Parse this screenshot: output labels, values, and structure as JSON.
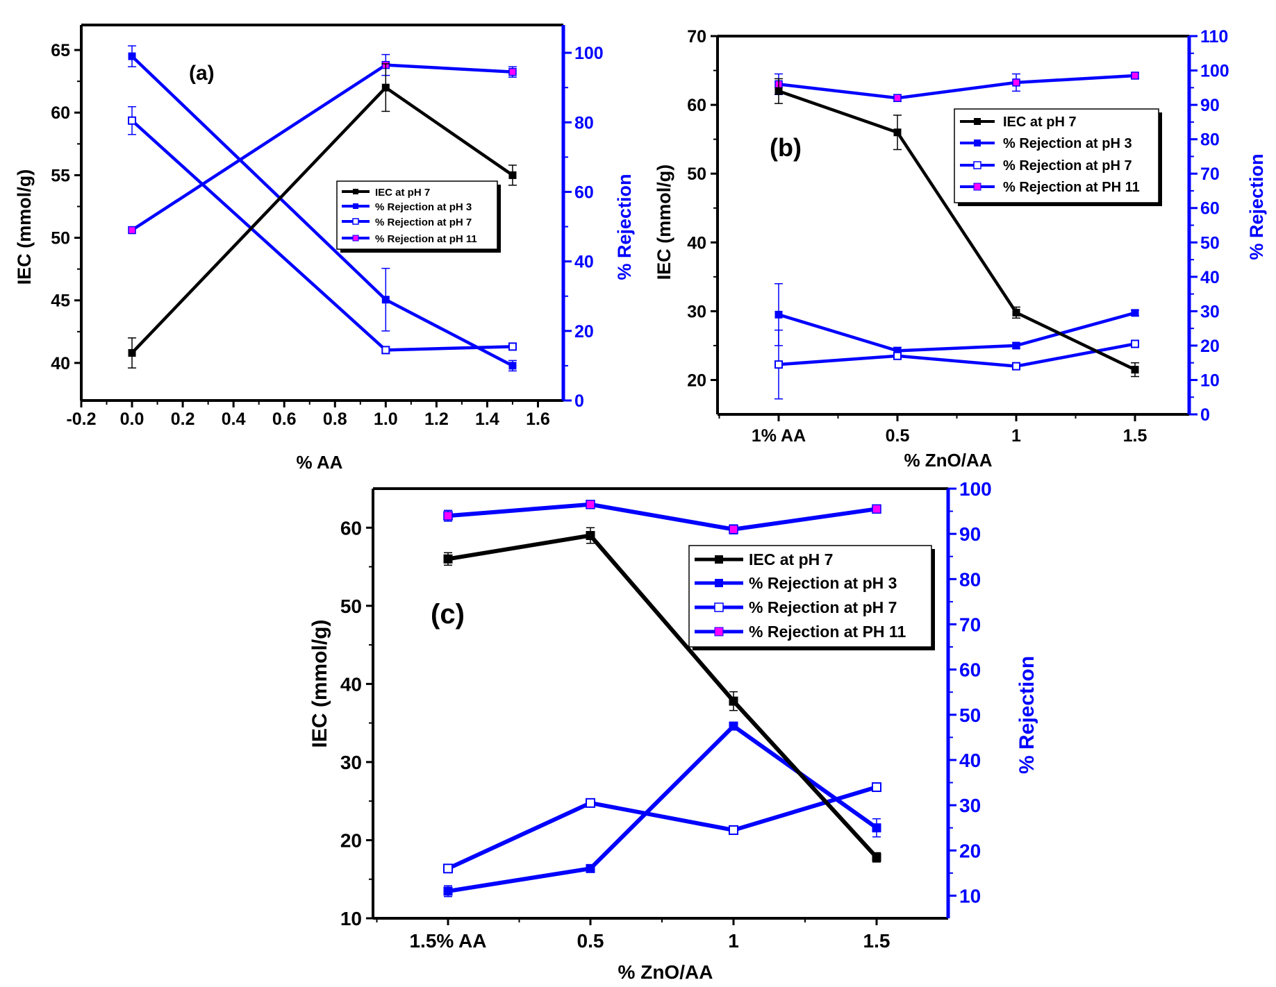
{
  "colors": {
    "ink": "#000000",
    "rejection": "#0000ff",
    "ph11_fill": "#ff00ff",
    "background": "#ffffff"
  },
  "panels": [
    {
      "label": "(a)",
      "xlabel": "% AA",
      "ylabel_left": "IEC (mmol/g)",
      "ylabel_right": "% Rejection",
      "legend": [
        "IEC at pH 7",
        "% Rejection at pH 3",
        "% Rejection at pH 7",
        "% Rejection at pH 11"
      ]
    },
    {
      "label": "(b)",
      "xlabel": "% ZnO/AA",
      "ylabel_left": "IEC (mmol/g)",
      "ylabel_right": "% Rejection",
      "legend": [
        "IEC at pH 7",
        "% Rejection at pH 3",
        "% Rejection at pH 7",
        "% Rejection at PH 11"
      ]
    },
    {
      "label": "(c)",
      "xlabel": "% ZnO/AA",
      "ylabel_left": "IEC (mmol/g)",
      "ylabel_right": "% Rejection",
      "legend": [
        "IEC at pH 7",
        "% Rejection at pH 3",
        "% Rejection at pH 7",
        "% Rejection at PH 11"
      ]
    }
  ],
  "chart_data": [
    {
      "type": "line",
      "panel": "(a)",
      "x": [
        0.0,
        1.0,
        1.5
      ],
      "xlim": [
        -0.2,
        1.7
      ],
      "xticks": [
        "-0.2",
        "0.0",
        "0.2",
        "0.4",
        "0.6",
        "0.8",
        "1.0",
        "1.2",
        "1.4",
        "1.6"
      ],
      "y_left_lim": [
        37,
        67
      ],
      "y_left_ticks": [
        40,
        45,
        50,
        55,
        60,
        65
      ],
      "y_right_lim": [
        0,
        108
      ],
      "y_right_ticks": [
        0,
        20,
        40,
        60,
        80,
        100
      ],
      "series": [
        {
          "name": "IEC at pH 7",
          "axis": "left",
          "marker": "filled-square-black",
          "values": [
            40.8,
            62.0,
            55.0
          ],
          "errors": [
            1.2,
            1.9,
            0.8
          ]
        },
        {
          "name": "% Rejection at pH 3",
          "axis": "right",
          "marker": "filled-square-blue",
          "values": [
            99.0,
            29.0,
            10.0
          ],
          "errors": [
            3.0,
            9.0,
            1.5
          ]
        },
        {
          "name": "% Rejection at pH 7",
          "axis": "right",
          "marker": "open-square",
          "values": [
            80.5,
            14.5,
            15.5
          ],
          "errors": [
            4.0,
            1.0,
            0.8
          ]
        },
        {
          "name": "% Rejection at pH 11",
          "axis": "right",
          "marker": "magenta-square",
          "values": [
            49.0,
            96.5,
            94.5
          ],
          "errors": [
            0.0,
            3.0,
            1.5
          ]
        }
      ]
    },
    {
      "type": "line",
      "panel": "(b)",
      "categories": [
        "1% AA",
        "0.5",
        "1",
        "1.5"
      ],
      "y_left_lim": [
        15,
        70
      ],
      "y_left_ticks": [
        20,
        30,
        40,
        50,
        60,
        70
      ],
      "y_right_lim": [
        0,
        110
      ],
      "y_right_ticks": [
        0,
        10,
        20,
        30,
        40,
        50,
        60,
        70,
        80,
        90,
        100,
        110
      ],
      "series": [
        {
          "name": "IEC at pH 7",
          "axis": "left",
          "marker": "filled-square-black",
          "values": [
            62.0,
            56.0,
            29.8,
            21.5
          ],
          "errors": [
            1.8,
            2.5,
            0.8,
            1.0
          ]
        },
        {
          "name": "% Rejection at pH 3",
          "axis": "right",
          "marker": "filled-square-blue",
          "values": [
            29.0,
            18.5,
            20.0,
            29.5
          ],
          "errors": [
            9.0,
            1.0,
            0.8,
            0.8
          ]
        },
        {
          "name": "% Rejection at pH 7",
          "axis": "right",
          "marker": "open-square",
          "values": [
            14.5,
            17.0,
            14.0,
            20.5
          ],
          "errors": [
            10.0,
            1.0,
            1.0,
            1.0
          ]
        },
        {
          "name": "% Rejection at PH 11",
          "axis": "right",
          "marker": "magenta-square",
          "values": [
            96.0,
            92.0,
            96.5,
            98.5
          ],
          "errors": [
            3.0,
            1.0,
            2.5,
            0.8
          ]
        }
      ]
    },
    {
      "type": "line",
      "panel": "(c)",
      "categories": [
        "1.5% AA",
        "0.5",
        "1",
        "1.5"
      ],
      "y_left_lim": [
        10,
        65
      ],
      "y_left_ticks": [
        10,
        20,
        30,
        40,
        50,
        60
      ],
      "y_right_lim": [
        5,
        100
      ],
      "y_right_ticks": [
        10,
        20,
        30,
        40,
        50,
        60,
        70,
        80,
        90,
        100
      ],
      "series": [
        {
          "name": "IEC at pH 7",
          "axis": "left",
          "marker": "filled-square-black",
          "values": [
            56.0,
            59.0,
            37.8,
            17.8
          ],
          "errors": [
            0.8,
            1.0,
            1.2,
            0.6
          ]
        },
        {
          "name": "% Rejection at pH 3",
          "axis": "right",
          "marker": "filled-square-blue",
          "values": [
            11.0,
            16.0,
            47.5,
            25.0
          ],
          "errors": [
            1.2,
            0.6,
            0.6,
            2.0
          ]
        },
        {
          "name": "% Rejection at pH 7",
          "axis": "right",
          "marker": "open-square",
          "values": [
            16.0,
            30.5,
            24.5,
            34.0
          ],
          "errors": [
            0.6,
            0.6,
            0.6,
            0.6
          ]
        },
        {
          "name": "% Rejection at PH 11",
          "axis": "right",
          "marker": "magenta-square",
          "values": [
            94.0,
            96.5,
            91.0,
            95.5
          ],
          "errors": [
            1.2,
            0.6,
            1.0,
            0.6
          ]
        }
      ]
    }
  ]
}
